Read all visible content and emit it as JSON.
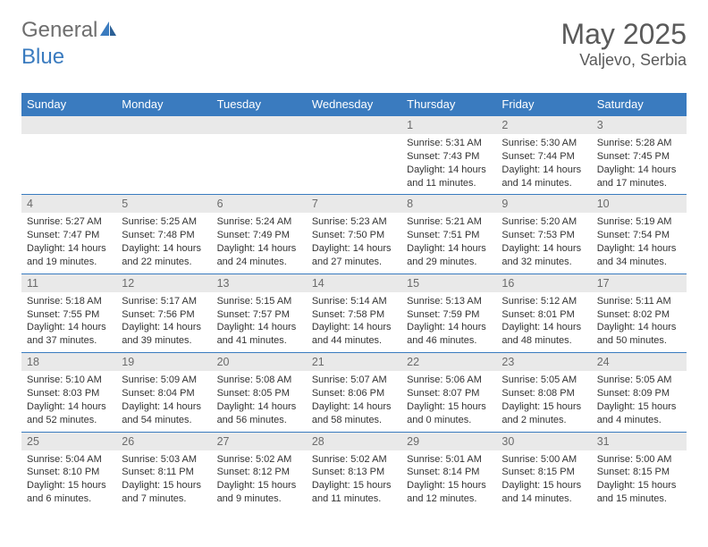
{
  "brand": {
    "text1": "General",
    "text2": "Blue"
  },
  "title": {
    "month": "May 2025",
    "location": "Valjevo, Serbia"
  },
  "colors": {
    "header_bg": "#3a7bbf",
    "header_fg": "#ffffff",
    "daynum_bg": "#e9e9e9",
    "daynum_fg": "#6b6b6b",
    "rule": "#3a7bbf",
    "text": "#333333",
    "brand_gray": "#6e6e6e",
    "brand_blue": "#3a7bbf"
  },
  "weekdays": [
    "Sunday",
    "Monday",
    "Tuesday",
    "Wednesday",
    "Thursday",
    "Friday",
    "Saturday"
  ],
  "weeks": [
    [
      null,
      null,
      null,
      null,
      {
        "n": "1",
        "sr": "5:31 AM",
        "ss": "7:43 PM",
        "dl": "14 hours and 11 minutes."
      },
      {
        "n": "2",
        "sr": "5:30 AM",
        "ss": "7:44 PM",
        "dl": "14 hours and 14 minutes."
      },
      {
        "n": "3",
        "sr": "5:28 AM",
        "ss": "7:45 PM",
        "dl": "14 hours and 17 minutes."
      }
    ],
    [
      {
        "n": "4",
        "sr": "5:27 AM",
        "ss": "7:47 PM",
        "dl": "14 hours and 19 minutes."
      },
      {
        "n": "5",
        "sr": "5:25 AM",
        "ss": "7:48 PM",
        "dl": "14 hours and 22 minutes."
      },
      {
        "n": "6",
        "sr": "5:24 AM",
        "ss": "7:49 PM",
        "dl": "14 hours and 24 minutes."
      },
      {
        "n": "7",
        "sr": "5:23 AM",
        "ss": "7:50 PM",
        "dl": "14 hours and 27 minutes."
      },
      {
        "n": "8",
        "sr": "5:21 AM",
        "ss": "7:51 PM",
        "dl": "14 hours and 29 minutes."
      },
      {
        "n": "9",
        "sr": "5:20 AM",
        "ss": "7:53 PM",
        "dl": "14 hours and 32 minutes."
      },
      {
        "n": "10",
        "sr": "5:19 AM",
        "ss": "7:54 PM",
        "dl": "14 hours and 34 minutes."
      }
    ],
    [
      {
        "n": "11",
        "sr": "5:18 AM",
        "ss": "7:55 PM",
        "dl": "14 hours and 37 minutes."
      },
      {
        "n": "12",
        "sr": "5:17 AM",
        "ss": "7:56 PM",
        "dl": "14 hours and 39 minutes."
      },
      {
        "n": "13",
        "sr": "5:15 AM",
        "ss": "7:57 PM",
        "dl": "14 hours and 41 minutes."
      },
      {
        "n": "14",
        "sr": "5:14 AM",
        "ss": "7:58 PM",
        "dl": "14 hours and 44 minutes."
      },
      {
        "n": "15",
        "sr": "5:13 AM",
        "ss": "7:59 PM",
        "dl": "14 hours and 46 minutes."
      },
      {
        "n": "16",
        "sr": "5:12 AM",
        "ss": "8:01 PM",
        "dl": "14 hours and 48 minutes."
      },
      {
        "n": "17",
        "sr": "5:11 AM",
        "ss": "8:02 PM",
        "dl": "14 hours and 50 minutes."
      }
    ],
    [
      {
        "n": "18",
        "sr": "5:10 AM",
        "ss": "8:03 PM",
        "dl": "14 hours and 52 minutes."
      },
      {
        "n": "19",
        "sr": "5:09 AM",
        "ss": "8:04 PM",
        "dl": "14 hours and 54 minutes."
      },
      {
        "n": "20",
        "sr": "5:08 AM",
        "ss": "8:05 PM",
        "dl": "14 hours and 56 minutes."
      },
      {
        "n": "21",
        "sr": "5:07 AM",
        "ss": "8:06 PM",
        "dl": "14 hours and 58 minutes."
      },
      {
        "n": "22",
        "sr": "5:06 AM",
        "ss": "8:07 PM",
        "dl": "15 hours and 0 minutes."
      },
      {
        "n": "23",
        "sr": "5:05 AM",
        "ss": "8:08 PM",
        "dl": "15 hours and 2 minutes."
      },
      {
        "n": "24",
        "sr": "5:05 AM",
        "ss": "8:09 PM",
        "dl": "15 hours and 4 minutes."
      }
    ],
    [
      {
        "n": "25",
        "sr": "5:04 AM",
        "ss": "8:10 PM",
        "dl": "15 hours and 6 minutes."
      },
      {
        "n": "26",
        "sr": "5:03 AM",
        "ss": "8:11 PM",
        "dl": "15 hours and 7 minutes."
      },
      {
        "n": "27",
        "sr": "5:02 AM",
        "ss": "8:12 PM",
        "dl": "15 hours and 9 minutes."
      },
      {
        "n": "28",
        "sr": "5:02 AM",
        "ss": "8:13 PM",
        "dl": "15 hours and 11 minutes."
      },
      {
        "n": "29",
        "sr": "5:01 AM",
        "ss": "8:14 PM",
        "dl": "15 hours and 12 minutes."
      },
      {
        "n": "30",
        "sr": "5:00 AM",
        "ss": "8:15 PM",
        "dl": "15 hours and 14 minutes."
      },
      {
        "n": "31",
        "sr": "5:00 AM",
        "ss": "8:15 PM",
        "dl": "15 hours and 15 minutes."
      }
    ]
  ],
  "labels": {
    "sunrise": "Sunrise: ",
    "sunset": "Sunset: ",
    "daylight": "Daylight: "
  }
}
